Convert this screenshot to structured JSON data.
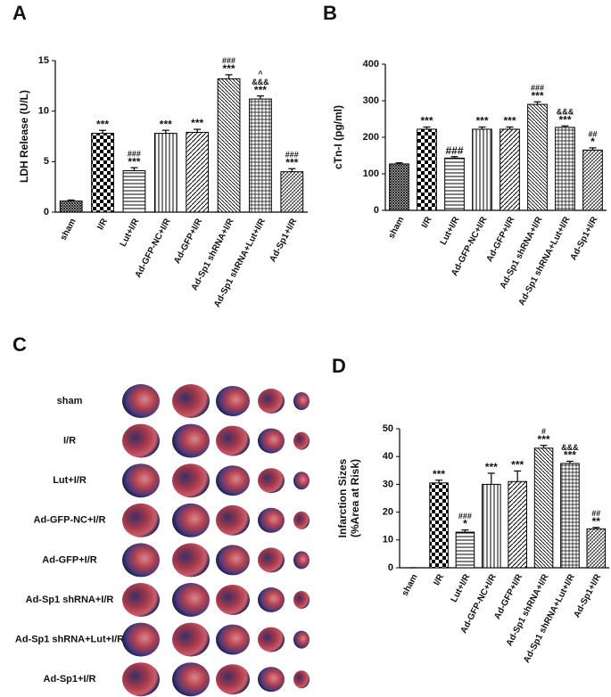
{
  "chart_data": [
    {
      "type": "bar",
      "panel_label": "A",
      "ylabel": [
        "LDH Release (U/L)"
      ],
      "categories": [
        "sham",
        "I/R",
        "Lut+I/R",
        "Ad-GFP-NC+I/R",
        "Ad-GFP+I/R",
        "Ad-Sp1 shRNA+I/R",
        "Ad-Sp1 shRNA+Lut+I/R",
        "Ad-Sp1+I/R"
      ],
      "values": [
        1.1,
        7.8,
        4.1,
        7.8,
        7.9,
        13.2,
        11.2,
        4.0
      ],
      "errors": [
        0.1,
        0.3,
        0.3,
        0.3,
        0.3,
        0.4,
        0.3,
        0.3
      ],
      "annotations": [
        [],
        [
          "***"
        ],
        [
          "###",
          "***"
        ],
        [
          "***"
        ],
        [
          "***"
        ],
        [
          "###",
          "***"
        ],
        [
          "^",
          "&&&",
          "***"
        ],
        [
          "###",
          "***"
        ]
      ],
      "ylim": [
        0,
        15
      ],
      "yticks": [
        0,
        5,
        10,
        15
      ]
    },
    {
      "type": "bar",
      "panel_label": "B",
      "ylabel": [
        "cTn-I (pg/ml)"
      ],
      "categories": [
        "sham",
        "I/R",
        "Lut+I/R",
        "Ad-GFP-NC+I/R",
        "Ad-GFP+I/R",
        "Ad-Sp1 shRNA+I/R",
        "Ad-Sp1 shRNA+Lut+I/R",
        "Ad-Sp1+I/R"
      ],
      "values": [
        127,
        222,
        143,
        222,
        222,
        290,
        227,
        165
      ],
      "errors": [
        3,
        6,
        4,
        6,
        6,
        7,
        4,
        6
      ],
      "annotations": [
        [],
        [
          "***"
        ],
        [
          "###"
        ],
        [
          "***"
        ],
        [
          "***"
        ],
        [
          "###",
          "***"
        ],
        [
          "&&&",
          "***"
        ],
        [
          "##",
          "*"
        ]
      ],
      "ylim": [
        0,
        400
      ],
      "yticks": [
        0,
        100,
        200,
        300,
        400
      ]
    },
    {
      "type": "bar",
      "panel_label": "D",
      "ylabel": [
        "Infarction Sizes",
        "(%Area at Risk)"
      ],
      "categories": [
        "sham",
        "I/R",
        "Lut+I/R",
        "Ad-GFP-NC+I/R",
        "Ad-GFP+I/R",
        "Ad-Sp1 shRNA+I/R",
        "Ad-Sp1 shRNA+Lut+I/R",
        "Ad-Sp1+I/R"
      ],
      "values": [
        0,
        30.5,
        12.8,
        30,
        31,
        43,
        37.5,
        14
      ],
      "errors": [
        0,
        1,
        0.8,
        4,
        3.8,
        1,
        0.8,
        0.5
      ],
      "annotations": [
        [],
        [
          "***"
        ],
        [
          "###",
          "*"
        ],
        [
          "***"
        ],
        [
          "***"
        ],
        [
          "#",
          "***"
        ],
        [
          "&&&",
          "***"
        ],
        [
          "##",
          "**"
        ]
      ],
      "ylim": [
        0,
        50
      ],
      "yticks": [
        0,
        10,
        20,
        30,
        40,
        50
      ]
    }
  ],
  "panel_c": {
    "label": "C",
    "rows": [
      "sham",
      "I/R",
      "Lut+I/R",
      "Ad-GFP-NC+I/R",
      "Ad-GFP+I/R",
      "Ad-Sp1 shRNA+I/R",
      "Ad-Sp1 shRNA+Lut+I/R",
      "Ad-Sp1+I/R"
    ]
  }
}
